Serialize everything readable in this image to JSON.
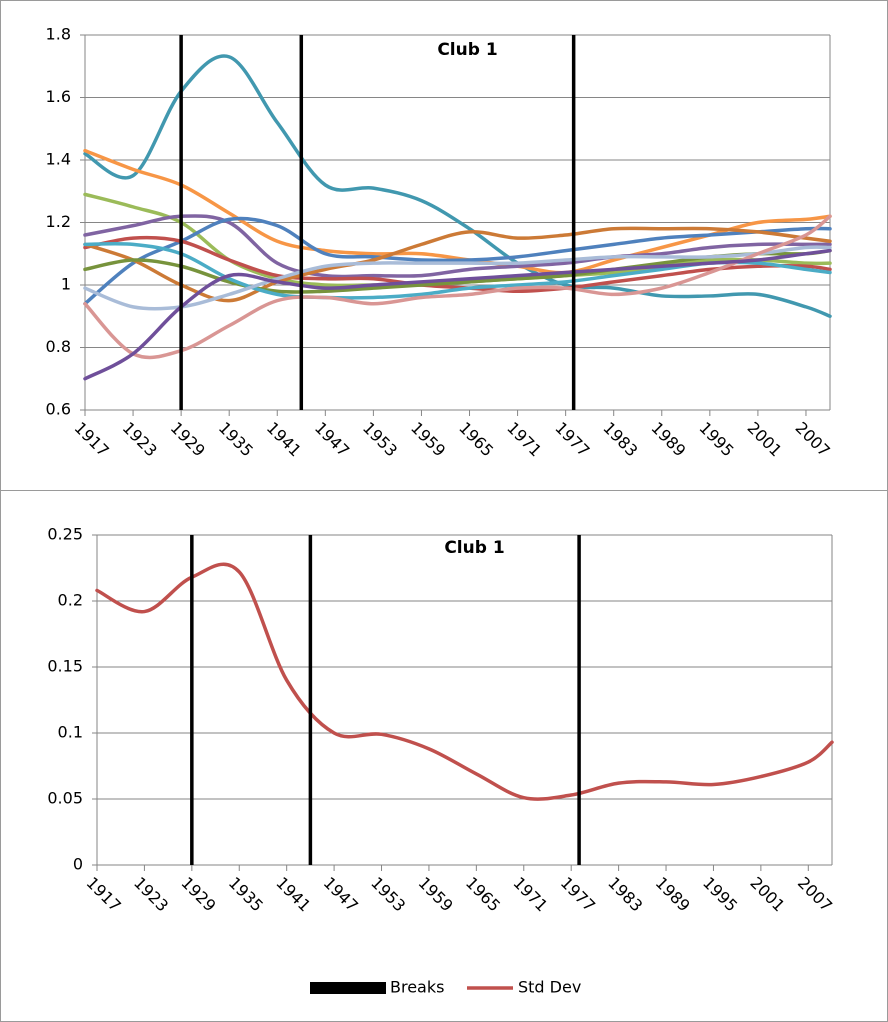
{
  "chart_data": [
    {
      "type": "line",
      "title": "Club 1",
      "x": [
        1917,
        1923,
        1929,
        1935,
        1941,
        1947,
        1953,
        1959,
        1965,
        1971,
        1977,
        1983,
        1989,
        1995,
        2001,
        2007,
        2010
      ],
      "xlim": [
        1917,
        2010
      ],
      "xticks": [
        1917,
        1923,
        1929,
        1935,
        1941,
        1947,
        1953,
        1959,
        1965,
        1971,
        1977,
        1983,
        1989,
        1995,
        2001,
        2007
      ],
      "ylim": [
        0.6,
        1.8
      ],
      "yticks": [
        0.6,
        0.8,
        1,
        1.2,
        1.4,
        1.6,
        1.8
      ],
      "grid": true,
      "breaks": {
        "color": "#000000",
        "x": [
          1929,
          1944,
          1978
        ]
      },
      "series": [
        {
          "color": "#4198af",
          "values": [
            1.42,
            1.35,
            1.62,
            1.73,
            1.52,
            1.32,
            1.31,
            1.27,
            1.18,
            1.07,
            1.0,
            0.99,
            0.965,
            0.965,
            0.97,
            0.93,
            0.9
          ]
        },
        {
          "color": "#f79646",
          "values": [
            1.43,
            1.37,
            1.32,
            1.23,
            1.14,
            1.11,
            1.1,
            1.1,
            1.08,
            1.06,
            1.04,
            1.08,
            1.12,
            1.16,
            1.2,
            1.21,
            1.22
          ]
        },
        {
          "color": "#9bbb59",
          "values": [
            1.29,
            1.25,
            1.2,
            1.08,
            1.02,
            1.0,
            1.0,
            1.0,
            1.01,
            1.02,
            1.03,
            1.04,
            1.06,
            1.08,
            1.08,
            1.07,
            1.07
          ]
        },
        {
          "color": "#8064a2",
          "values": [
            1.16,
            1.19,
            1.22,
            1.2,
            1.07,
            1.03,
            1.03,
            1.03,
            1.05,
            1.06,
            1.07,
            1.09,
            1.1,
            1.12,
            1.13,
            1.13,
            1.13
          ]
        },
        {
          "color": "#4f81bd",
          "values": [
            0.94,
            1.07,
            1.14,
            1.21,
            1.19,
            1.1,
            1.09,
            1.08,
            1.08,
            1.09,
            1.11,
            1.13,
            1.15,
            1.16,
            1.17,
            1.18,
            1.18
          ]
        },
        {
          "color": "#c0504d",
          "values": [
            1.12,
            1.15,
            1.14,
            1.08,
            1.03,
            1.02,
            1.02,
            1.0,
            0.99,
            0.98,
            0.99,
            1.01,
            1.03,
            1.05,
            1.06,
            1.06,
            1.05
          ]
        },
        {
          "color": "#cc7a36",
          "values": [
            1.13,
            1.08,
            1.0,
            0.95,
            1.01,
            1.05,
            1.08,
            1.13,
            1.17,
            1.15,
            1.16,
            1.18,
            1.18,
            1.18,
            1.17,
            1.15,
            1.14
          ]
        },
        {
          "color": "#77933c",
          "values": [
            1.05,
            1.08,
            1.06,
            1.01,
            0.98,
            0.98,
            0.99,
            1.0,
            1.01,
            1.02,
            1.03,
            1.05,
            1.07,
            1.09,
            1.1,
            1.1,
            1.11
          ]
        },
        {
          "color": "#4bacc6",
          "values": [
            1.13,
            1.13,
            1.1,
            1.02,
            0.97,
            0.96,
            0.96,
            0.97,
            0.99,
            1.0,
            1.01,
            1.03,
            1.05,
            1.07,
            1.07,
            1.05,
            1.04
          ]
        },
        {
          "color": "#a9bcd8",
          "values": [
            0.99,
            0.93,
            0.93,
            0.97,
            1.02,
            1.06,
            1.07,
            1.07,
            1.07,
            1.07,
            1.08,
            1.09,
            1.09,
            1.09,
            1.1,
            1.12,
            1.12
          ]
        },
        {
          "color": "#d99694",
          "values": [
            0.94,
            0.78,
            0.79,
            0.87,
            0.95,
            0.96,
            0.94,
            0.96,
            0.97,
            0.99,
            0.99,
            0.97,
            0.99,
            1.04,
            1.1,
            1.16,
            1.22
          ]
        },
        {
          "color": "#6f4f9a",
          "values": [
            0.7,
            0.78,
            0.93,
            1.03,
            1.01,
            0.99,
            1.0,
            1.01,
            1.02,
            1.03,
            1.04,
            1.05,
            1.06,
            1.07,
            1.08,
            1.1,
            1.11
          ]
        }
      ]
    },
    {
      "type": "line",
      "title": "Club 1",
      "x": [
        1917,
        1923,
        1929,
        1935,
        1941,
        1947,
        1953,
        1959,
        1965,
        1971,
        1977,
        1983,
        1989,
        1995,
        2001,
        2007,
        2010
      ],
      "xlim": [
        1917,
        2010
      ],
      "xticks": [
        1917,
        1923,
        1929,
        1935,
        1941,
        1947,
        1953,
        1959,
        1965,
        1971,
        1977,
        1983,
        1989,
        1995,
        2001,
        2007
      ],
      "ylim": [
        0,
        0.25
      ],
      "yticks": [
        0,
        0.05,
        0.1,
        0.15,
        0.2,
        0.25
      ],
      "grid": true,
      "breaks": {
        "name": "Breaks",
        "color": "#000000",
        "x": [
          1929,
          1944,
          1978
        ]
      },
      "series": [
        {
          "name": "Std Dev",
          "color": "#c0504d",
          "values": [
            0.208,
            0.192,
            0.218,
            0.222,
            0.14,
            0.1,
            0.099,
            0.088,
            0.069,
            0.051,
            0.053,
            0.062,
            0.063,
            0.061,
            0.067,
            0.078,
            0.093
          ]
        }
      ]
    }
  ]
}
